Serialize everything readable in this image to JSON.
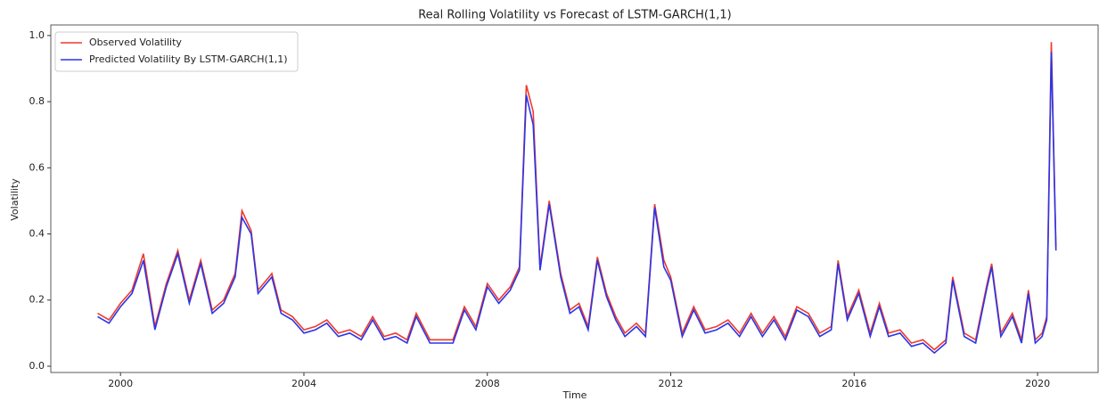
{
  "chart_data": {
    "type": "line",
    "title": "Real Rolling Volatility vs Forecast of LSTM-GARCH(1,1)",
    "x_label": "Time",
    "y_label": "Volatility",
    "x": [
      1999.5,
      1999.75,
      2000.0,
      2000.25,
      2000.5,
      2000.75,
      2001.0,
      2001.25,
      2001.5,
      2001.75,
      2002.0,
      2002.25,
      2002.5,
      2002.65,
      2002.85,
      2003.0,
      2003.3,
      2003.5,
      2003.75,
      2004.0,
      2004.25,
      2004.5,
      2004.75,
      2005.0,
      2005.25,
      2005.5,
      2005.75,
      2006.0,
      2006.25,
      2006.45,
      2006.75,
      2007.0,
      2007.25,
      2007.5,
      2007.75,
      2008.0,
      2008.25,
      2008.5,
      2008.7,
      2008.85,
      2009.0,
      2009.15,
      2009.35,
      2009.6,
      2009.8,
      2010.0,
      2010.2,
      2010.4,
      2010.6,
      2010.8,
      2011.0,
      2011.25,
      2011.45,
      2011.65,
      2011.85,
      2012.0,
      2012.25,
      2012.5,
      2012.75,
      2013.0,
      2013.25,
      2013.5,
      2013.75,
      2014.0,
      2014.25,
      2014.5,
      2014.75,
      2015.0,
      2015.25,
      2015.5,
      2015.65,
      2015.85,
      2016.1,
      2016.35,
      2016.55,
      2016.75,
      2017.0,
      2017.25,
      2017.5,
      2017.75,
      2018.0,
      2018.15,
      2018.4,
      2018.65,
      2018.9,
      2019.0,
      2019.2,
      2019.45,
      2019.65,
      2019.8,
      2019.95,
      2020.1,
      2020.2,
      2020.3,
      2020.4
    ],
    "series": [
      {
        "name": "Observed Volatility",
        "color": "#ee3a2c",
        "values": [
          0.16,
          0.14,
          0.19,
          0.23,
          0.34,
          0.12,
          0.25,
          0.35,
          0.2,
          0.32,
          0.17,
          0.2,
          0.28,
          0.47,
          0.41,
          0.23,
          0.28,
          0.17,
          0.15,
          0.11,
          0.12,
          0.14,
          0.1,
          0.11,
          0.09,
          0.15,
          0.09,
          0.1,
          0.08,
          0.16,
          0.08,
          0.08,
          0.08,
          0.18,
          0.12,
          0.25,
          0.2,
          0.24,
          0.3,
          0.85,
          0.77,
          0.3,
          0.5,
          0.28,
          0.17,
          0.19,
          0.12,
          0.33,
          0.22,
          0.15,
          0.1,
          0.13,
          0.1,
          0.49,
          0.32,
          0.27,
          0.1,
          0.18,
          0.11,
          0.12,
          0.14,
          0.1,
          0.16,
          0.1,
          0.15,
          0.09,
          0.18,
          0.16,
          0.1,
          0.12,
          0.32,
          0.15,
          0.23,
          0.1,
          0.19,
          0.1,
          0.11,
          0.07,
          0.08,
          0.05,
          0.08,
          0.27,
          0.1,
          0.08,
          0.25,
          0.31,
          0.1,
          0.16,
          0.08,
          0.23,
          0.08,
          0.1,
          0.15,
          0.98,
          0.36
        ]
      },
      {
        "name": "Predicted Volatility By LSTM-GARCH(1,1)",
        "color": "#2b35e8",
        "values": [
          0.15,
          0.13,
          0.18,
          0.22,
          0.32,
          0.11,
          0.24,
          0.34,
          0.19,
          0.31,
          0.16,
          0.19,
          0.27,
          0.45,
          0.4,
          0.22,
          0.27,
          0.16,
          0.14,
          0.1,
          0.11,
          0.13,
          0.09,
          0.1,
          0.08,
          0.14,
          0.08,
          0.09,
          0.07,
          0.15,
          0.07,
          0.07,
          0.07,
          0.17,
          0.11,
          0.24,
          0.19,
          0.23,
          0.29,
          0.82,
          0.73,
          0.29,
          0.49,
          0.27,
          0.16,
          0.18,
          0.11,
          0.32,
          0.21,
          0.14,
          0.09,
          0.12,
          0.09,
          0.48,
          0.3,
          0.26,
          0.09,
          0.17,
          0.1,
          0.11,
          0.13,
          0.09,
          0.15,
          0.09,
          0.14,
          0.08,
          0.17,
          0.15,
          0.09,
          0.11,
          0.31,
          0.14,
          0.22,
          0.09,
          0.18,
          0.09,
          0.1,
          0.06,
          0.07,
          0.04,
          0.07,
          0.26,
          0.09,
          0.07,
          0.24,
          0.3,
          0.09,
          0.15,
          0.07,
          0.22,
          0.07,
          0.09,
          0.14,
          0.95,
          0.35
        ]
      }
    ],
    "xlim": [
      1998.48,
      2021.32
    ],
    "xticks": [
      2000,
      2004,
      2008,
      2012,
      2016,
      2020
    ],
    "ylim": [
      -0.019,
      1.032
    ],
    "yticks": [
      {
        "value": 0,
        "label": "0.0"
      },
      {
        "value": 0.2,
        "label": "0.2"
      },
      {
        "value": 0.4,
        "label": "0.4"
      },
      {
        "value": 0.6,
        "label": "0.6"
      },
      {
        "value": 0.8,
        "label": "0.8"
      },
      {
        "value": 1,
        "label": "1.0"
      }
    ],
    "grid": false,
    "legend": "upper left"
  }
}
